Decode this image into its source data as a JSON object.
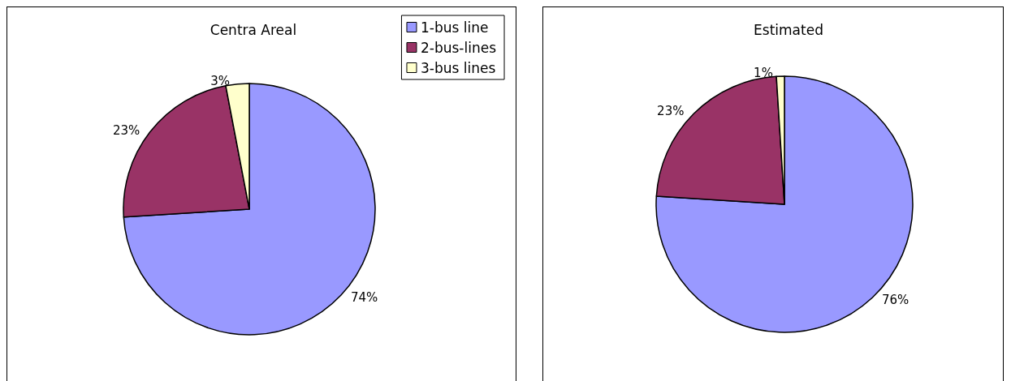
{
  "chart_data": [
    {
      "type": "pie",
      "title": "Centra Areal",
      "categories": [
        "1-bus line",
        "2-bus-lines",
        "3-bus lines"
      ],
      "values": [
        74,
        23,
        3
      ],
      "colors": [
        "#9999ff",
        "#993366",
        "#ffffcc"
      ],
      "value_labels": [
        "74%",
        "23%",
        "3%"
      ],
      "legend": "top right"
    },
    {
      "type": "pie",
      "title": "Estimated",
      "categories": [
        null,
        null,
        null
      ],
      "values": [
        76,
        23,
        1
      ],
      "colors": [
        "#9999ff",
        "#993366",
        "#ffffcc"
      ],
      "value_labels": [
        "76%",
        "23%",
        "1%"
      ],
      "legend": false
    }
  ]
}
